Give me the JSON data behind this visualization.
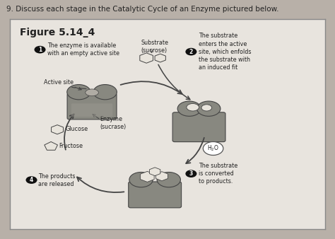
{
  "question_text": "9. Discuss each stage in the Catalytic Cycle of an Enzyme pictured below.",
  "figure_title": "Figure 5.14_4",
  "outer_bg": "#b8b0a8",
  "panel_bg": "#dedad4",
  "inner_bg": "#e8e4de",
  "enzyme_color": "#888880",
  "enzyme_dark": "#606058",
  "substrate_color": "#d8d4cc",
  "substrate_light": "#e8e4dc",
  "text_color": "#222222",
  "stage1_text": "The enzyme is available\nwith an empty active site",
  "stage2_text": "The substrate\nenters the active\nsite, which enfolds\nthe substrate with\nan induced fit",
  "stage3_text": "The substrate\nis converted\nto products.",
  "stage4_text": "The products\nare released",
  "active_site_text": "Active site",
  "enzyme_label": "Enzyme\n(sucrase)",
  "substrate_label": "Substrate\n(sucrose)",
  "glucose_label": "Glucose",
  "fructose_label": "Fructose",
  "h2o_label": "H₂O"
}
